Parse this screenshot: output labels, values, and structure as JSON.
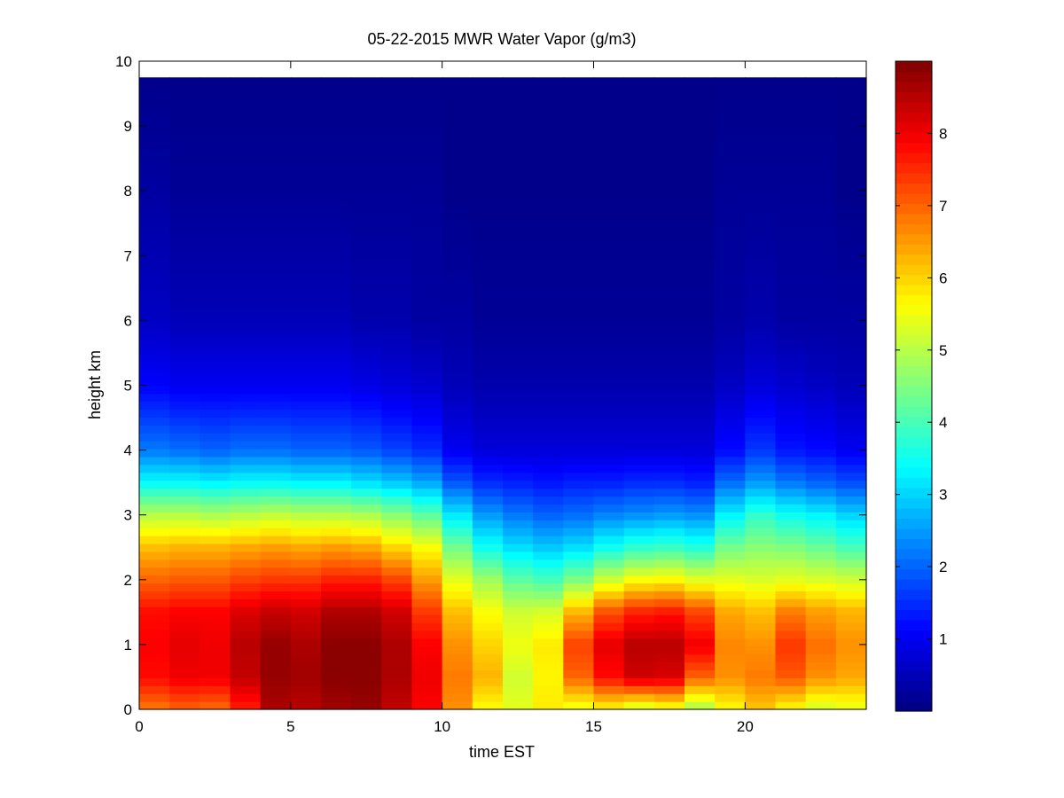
{
  "chart_data": {
    "type": "heatmap",
    "title": "05-22-2015 MWR Water Vapor (g/m3)",
    "xlabel": "time EST",
    "ylabel": "height km",
    "xlim": [
      0,
      24
    ],
    "ylim": [
      0,
      10
    ],
    "x_ticks": [
      0,
      5,
      10,
      15,
      20
    ],
    "y_ticks": [
      0,
      1,
      2,
      3,
      4,
      5,
      6,
      7,
      8,
      9,
      10
    ],
    "colorbar": {
      "colormap": "jet",
      "range": [
        0,
        9
      ],
      "ticks": [
        1,
        2,
        3,
        4,
        5,
        6,
        7,
        8
      ]
    },
    "x": [
      0,
      1,
      2,
      3,
      4,
      5,
      6,
      7,
      8,
      9,
      10,
      11,
      12,
      13,
      14,
      15,
      16,
      17,
      18,
      19,
      20,
      21,
      22,
      23
    ],
    "x_cell_width": 1,
    "y_top": 9.75,
    "y_profile_levels": [
      0,
      0.5,
      1,
      1.5,
      2,
      2.5,
      3,
      3.5,
      4,
      5,
      6,
      8,
      9.75
    ],
    "profiles": [
      [
        6.8,
        7.8,
        7.9,
        7.8,
        7.0,
        6.2,
        5.0,
        3.4,
        2.2,
        1.1,
        0.6,
        0.3,
        0.1
      ],
      [
        7.0,
        8.0,
        8.1,
        7.9,
        7.1,
        6.3,
        5.0,
        3.4,
        2.1,
        1.0,
        0.5,
        0.2,
        0.1
      ],
      [
        6.9,
        8.0,
        8.0,
        7.9,
        7.1,
        6.3,
        4.9,
        3.3,
        2.0,
        1.0,
        0.5,
        0.2,
        0.1
      ],
      [
        7.6,
        8.4,
        8.5,
        8.2,
        7.3,
        6.4,
        5.0,
        3.4,
        2.1,
        1.0,
        0.5,
        0.2,
        0.1
      ],
      [
        8.6,
        8.8,
        8.8,
        8.4,
        7.4,
        6.5,
        5.1,
        3.4,
        2.1,
        1.0,
        0.5,
        0.2,
        0.1
      ],
      [
        8.5,
        8.7,
        8.6,
        8.3,
        7.4,
        6.4,
        5.0,
        3.3,
        2.0,
        1.0,
        0.5,
        0.2,
        0.1
      ],
      [
        8.7,
        8.9,
        8.9,
        8.6,
        7.6,
        6.5,
        5.0,
        3.3,
        2.0,
        1.0,
        0.5,
        0.2,
        0.1
      ],
      [
        8.8,
        8.9,
        8.9,
        8.6,
        7.6,
        6.4,
        4.9,
        3.1,
        1.9,
        0.9,
        0.4,
        0.2,
        0.1
      ],
      [
        8.4,
        8.6,
        8.6,
        8.3,
        7.3,
        6.0,
        4.6,
        2.9,
        1.7,
        0.8,
        0.4,
        0.2,
        0.1
      ],
      [
        7.9,
        8.0,
        7.9,
        7.4,
        6.5,
        5.6,
        4.2,
        2.6,
        1.5,
        0.7,
        0.3,
        0.2,
        0.1
      ],
      [
        6.6,
        6.8,
        6.6,
        6.2,
        5.4,
        4.4,
        3.2,
        1.9,
        1.0,
        0.5,
        0.3,
        0.1,
        0.1
      ],
      [
        5.6,
        6.3,
        6.0,
        5.6,
        4.8,
        3.5,
        2.5,
        1.5,
        0.8,
        0.4,
        0.2,
        0.1,
        0.1
      ],
      [
        5.4,
        5.2,
        5.5,
        5.2,
        4.2,
        3.1,
        2.2,
        1.4,
        0.8,
        0.4,
        0.2,
        0.1,
        0.1
      ],
      [
        5.8,
        5.7,
        5.8,
        5.3,
        4.0,
        2.9,
        2.0,
        1.3,
        0.8,
        0.4,
        0.2,
        0.1,
        0.1
      ],
      [
        5.4,
        7.0,
        7.3,
        6.3,
        4.5,
        3.1,
        2.1,
        1.4,
        0.8,
        0.4,
        0.2,
        0.1,
        0.1
      ],
      [
        5.6,
        7.8,
        8.1,
        7.2,
        5.2,
        3.5,
        2.3,
        1.4,
        0.8,
        0.4,
        0.2,
        0.1,
        0.1
      ],
      [
        5.1,
        8.3,
        8.5,
        7.6,
        5.6,
        3.8,
        2.4,
        1.5,
        0.8,
        0.4,
        0.2,
        0.1,
        0.1
      ],
      [
        5.4,
        8.2,
        8.5,
        7.7,
        5.7,
        3.9,
        2.5,
        1.5,
        0.8,
        0.4,
        0.2,
        0.1,
        0.1
      ],
      [
        4.8,
        7.0,
        8.0,
        7.3,
        5.4,
        3.7,
        2.4,
        1.4,
        0.8,
        0.4,
        0.2,
        0.1,
        0.1
      ],
      [
        5.6,
        6.6,
        6.7,
        6.4,
        5.4,
        4.4,
        3.3,
        2.1,
        1.2,
        0.6,
        0.3,
        0.2,
        0.1
      ],
      [
        6.1,
        6.8,
        6.6,
        6.2,
        5.3,
        4.6,
        3.8,
        2.5,
        1.6,
        0.8,
        0.4,
        0.2,
        0.1
      ],
      [
        5.6,
        7.1,
        7.4,
        6.8,
        5.4,
        4.5,
        3.5,
        2.2,
        1.3,
        0.7,
        0.3,
        0.2,
        0.1
      ],
      [
        5.2,
        6.6,
        6.9,
        6.5,
        5.3,
        4.3,
        3.3,
        2.0,
        1.2,
        0.6,
        0.3,
        0.2,
        0.1
      ],
      [
        5.4,
        6.4,
        6.6,
        6.3,
        5.2,
        4.0,
        3.0,
        1.8,
        1.0,
        0.5,
        0.3,
        0.1,
        0.1
      ]
    ]
  }
}
